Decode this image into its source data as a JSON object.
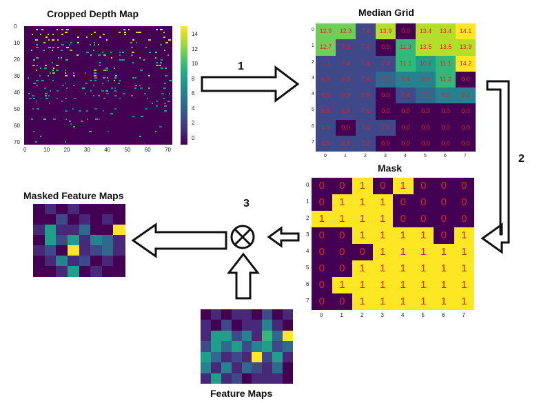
{
  "titles": {
    "depth": "Cropped Depth Map",
    "median": "Median Grid",
    "mask": "Mask",
    "masked": "Masked Feature Maps",
    "feature": "Feature Maps"
  },
  "steps": {
    "s1": "1",
    "s2": "2",
    "s3": "3"
  },
  "operator": "⊗",
  "depth_axis": {
    "y_ticks": [
      "0",
      "10",
      "20",
      "30",
      "40",
      "50",
      "60",
      "70"
    ],
    "x_ticks": [
      "0",
      "10",
      "20",
      "30",
      "40",
      "50",
      "60",
      "70"
    ],
    "cbar_ticks": [
      "14",
      "12",
      "10",
      "8",
      "6",
      "4",
      "2",
      "0"
    ]
  },
  "grid_ticks": [
    "0",
    "1",
    "2",
    "3",
    "4",
    "5",
    "6",
    "7"
  ],
  "median_grid": [
    [
      "12.9",
      "12.3",
      "7.4",
      "13.9",
      "0.0",
      "13.4",
      "13.4",
      "14.1"
    ],
    [
      "12.7",
      "7.3",
      "7.4",
      "0.0",
      "11.3",
      "13.5",
      "13.5",
      "13.9"
    ],
    [
      "7.3",
      "7.4",
      "7.4",
      "7.4",
      "11.2",
      "10.6",
      "11.1",
      "14.2"
    ],
    [
      "6.9",
      "6.9",
      "7.4",
      "7.7",
      "9.4",
      "9.5",
      "11.2",
      "0.0"
    ],
    [
      "6.9",
      "6.9",
      "6.9",
      "0.0",
      "7.4",
      "7.7",
      "9.2",
      "9.2"
    ],
    [
      "6.9",
      "6.9",
      "7.1",
      "0.0",
      "0.0",
      "0.0",
      "0.0",
      "0.0"
    ],
    [
      "6.9",
      "0.0",
      "7.0",
      "7.0",
      "0.0",
      "0.0",
      "0.0",
      "0.0"
    ],
    [
      "6.9",
      "6.9",
      "7.0",
      "0.0",
      "0.0",
      "0.0",
      "0.0",
      "0.0"
    ]
  ],
  "mask_grid": [
    [
      "0",
      "0",
      "1",
      "0",
      "1",
      "0",
      "0",
      "0"
    ],
    [
      "0",
      "1",
      "1",
      "1",
      "0",
      "0",
      "0",
      "0"
    ],
    [
      "1",
      "1",
      "1",
      "1",
      "0",
      "0",
      "0",
      "0"
    ],
    [
      "0",
      "0",
      "1",
      "1",
      "1",
      "1",
      "0",
      "1"
    ],
    [
      "0",
      "0",
      "0",
      "1",
      "1",
      "1",
      "1",
      "1"
    ],
    [
      "0",
      "0",
      "1",
      "1",
      "1",
      "1",
      "1",
      "1"
    ],
    [
      "0",
      "1",
      "1",
      "1",
      "1",
      "1",
      "1",
      "1"
    ],
    [
      "0",
      "0",
      "1",
      "1",
      "1",
      "1",
      "1",
      "1"
    ]
  ],
  "colors": {
    "viridis_dark": "#440154",
    "viridis_yellow": "#fde725",
    "number_red": "#d62728"
  }
}
